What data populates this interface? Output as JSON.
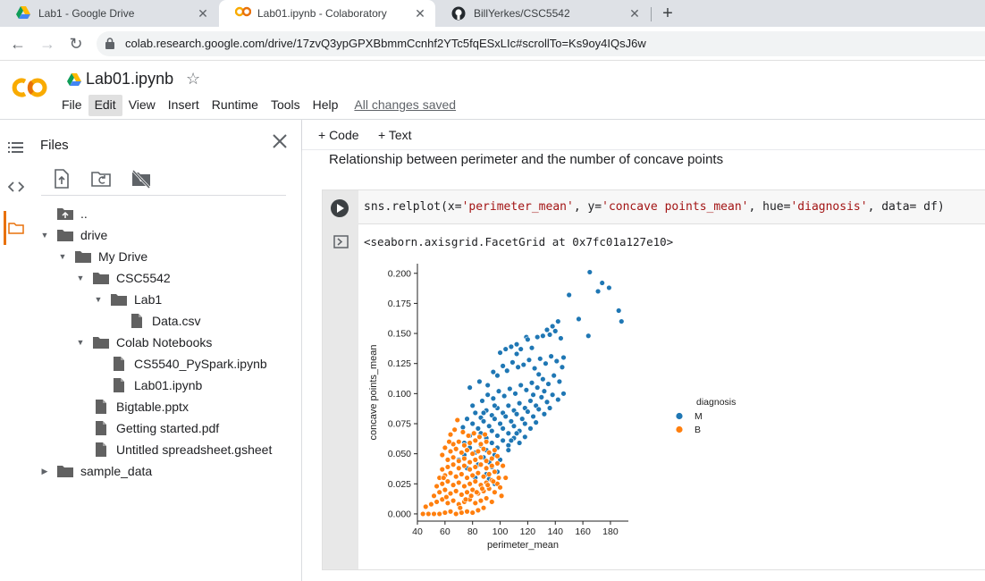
{
  "browser": {
    "tabs": [
      {
        "title": "Lab1 - Google Drive",
        "icon": "google-drive-icon",
        "active": false
      },
      {
        "title": "Lab01.ipynb - Colaboratory",
        "icon": "colab-icon",
        "active": true
      },
      {
        "title": "BillYerkes/CSC5542",
        "icon": "github-icon",
        "active": false
      }
    ],
    "url": "colab.research.google.com/drive/17zvQ3ypGPXBbmmCcnhf2YTc5fqESxLIc#scrollTo=Ks9oy4IQsJ6w"
  },
  "header": {
    "notebook_title": "Lab01.ipynb",
    "menu": [
      "File",
      "Edit",
      "View",
      "Insert",
      "Runtime",
      "Tools",
      "Help"
    ],
    "hovered_menu": "Edit",
    "save_status": "All changes saved"
  },
  "files_panel": {
    "title": "Files",
    "tree": [
      {
        "label": "..",
        "type": "parent",
        "depth": 0,
        "caret": "none"
      },
      {
        "label": "drive",
        "type": "folder",
        "depth": 0,
        "caret": "down"
      },
      {
        "label": "My Drive",
        "type": "folder",
        "depth": 1,
        "caret": "down"
      },
      {
        "label": "CSC5542",
        "type": "folder",
        "depth": 2,
        "caret": "down"
      },
      {
        "label": "Lab1",
        "type": "folder",
        "depth": 3,
        "caret": "down"
      },
      {
        "label": "Data.csv",
        "type": "file",
        "depth": 4,
        "caret": "none"
      },
      {
        "label": "Colab Notebooks",
        "type": "folder",
        "depth": 2,
        "caret": "down"
      },
      {
        "label": "CS5540_PySpark.ipynb",
        "type": "file",
        "depth": 3,
        "caret": "none"
      },
      {
        "label": "Lab01.ipynb",
        "type": "file",
        "depth": 3,
        "caret": "none"
      },
      {
        "label": "Bigtable.pptx",
        "type": "file",
        "depth": 2,
        "caret": "none"
      },
      {
        "label": "Getting started.pdf",
        "type": "file",
        "depth": 2,
        "caret": "none"
      },
      {
        "label": "Untitled spreadsheet.gsheet",
        "type": "file",
        "depth": 2,
        "caret": "none"
      },
      {
        "label": "sample_data",
        "type": "folder",
        "depth": 0,
        "caret": "right"
      }
    ]
  },
  "toolbar": {
    "code_label": "+ Code",
    "text_label": "+ Text"
  },
  "notebook": {
    "markdown": "Relationship between perimeter and the number of concave points",
    "code": {
      "p1": "sns.relplot(x=",
      "s1": "'perimeter_mean'",
      "p2": ", y=",
      "s2": "'concave points_mean'",
      "p3": ", hue=",
      "s3": "'diagnosis'",
      "p4": ", data= df)"
    },
    "output_text": "<seaborn.axisgrid.FacetGrid at 0x7fc01a127e10>"
  },
  "colors": {
    "M": "#1f77b4",
    "B": "#ff7f0e",
    "accent": "#e8710a"
  },
  "chart_data": {
    "type": "scatter",
    "xlabel": "perimeter_mean",
    "ylabel": "concave points_mean",
    "xlim": [
      40,
      193
    ],
    "ylim": [
      -0.006,
      0.208
    ],
    "xticks": [
      40,
      60,
      80,
      100,
      120,
      140,
      160,
      180
    ],
    "yticks": [
      0.0,
      0.025,
      0.05,
      0.075,
      0.1,
      0.125,
      0.15,
      0.175,
      0.2
    ],
    "ytick_labels": [
      "0.000",
      "0.025",
      "0.050",
      "0.075",
      "0.100",
      "0.125",
      "0.150",
      "0.175",
      "0.200"
    ],
    "legend": {
      "title": "diagnosis",
      "placement": "right"
    },
    "series": [
      {
        "name": "M",
        "points": [
          [
            165,
            0.201
          ],
          [
            171,
            0.185
          ],
          [
            174,
            0.192
          ],
          [
            179,
            0.188
          ],
          [
            186,
            0.169
          ],
          [
            188,
            0.16
          ],
          [
            150,
            0.182
          ],
          [
            157,
            0.162
          ],
          [
            164,
            0.148
          ],
          [
            144,
            0.146
          ],
          [
            140,
            0.152
          ],
          [
            136,
            0.149
          ],
          [
            131,
            0.148
          ],
          [
            127,
            0.147
          ],
          [
            123,
            0.138
          ],
          [
            119,
            0.147
          ],
          [
            115,
            0.137
          ],
          [
            112,
            0.141
          ],
          [
            108,
            0.139
          ],
          [
            104,
            0.137
          ],
          [
            100,
            0.134
          ],
          [
            142,
            0.16
          ],
          [
            138,
            0.156
          ],
          [
            134,
            0.153
          ],
          [
            146,
            0.13
          ],
          [
            145,
            0.122
          ],
          [
            141,
            0.127
          ],
          [
            137,
            0.131
          ],
          [
            133,
            0.125
          ],
          [
            129,
            0.129
          ],
          [
            125,
            0.121
          ],
          [
            121,
            0.128
          ],
          [
            117,
            0.124
          ],
          [
            113,
            0.122
          ],
          [
            109,
            0.126
          ],
          [
            105,
            0.119
          ],
          [
            102,
            0.123
          ],
          [
            98,
            0.115
          ],
          [
            95,
            0.118
          ],
          [
            91,
            0.107
          ],
          [
            85,
            0.11
          ],
          [
            78,
            0.105
          ],
          [
            143,
            0.11
          ],
          [
            139,
            0.115
          ],
          [
            135,
            0.108
          ],
          [
            131,
            0.112
          ],
          [
            127,
            0.105
          ],
          [
            123,
            0.109
          ],
          [
            119,
            0.103
          ],
          [
            115,
            0.107
          ],
          [
            111,
            0.1
          ],
          [
            107,
            0.104
          ],
          [
            103,
            0.098
          ],
          [
            99,
            0.102
          ],
          [
            95,
            0.096
          ],
          [
            91,
            0.099
          ],
          [
            87,
            0.094
          ],
          [
            146,
            0.1
          ],
          [
            142,
            0.095
          ],
          [
            138,
            0.099
          ],
          [
            134,
            0.093
          ],
          [
            130,
            0.097
          ],
          [
            126,
            0.09
          ],
          [
            122,
            0.094
          ],
          [
            118,
            0.088
          ],
          [
            114,
            0.092
          ],
          [
            110,
            0.086
          ],
          [
            106,
            0.09
          ],
          [
            102,
            0.084
          ],
          [
            98,
            0.088
          ],
          [
            94,
            0.082
          ],
          [
            90,
            0.086
          ],
          [
            86,
            0.08
          ],
          [
            82,
            0.084
          ],
          [
            136,
            0.088
          ],
          [
            132,
            0.083
          ],
          [
            128,
            0.087
          ],
          [
            124,
            0.081
          ],
          [
            120,
            0.085
          ],
          [
            116,
            0.079
          ],
          [
            112,
            0.083
          ],
          [
            108,
            0.077
          ],
          [
            104,
            0.081
          ],
          [
            100,
            0.075
          ],
          [
            96,
            0.079
          ],
          [
            92,
            0.073
          ],
          [
            88,
            0.077
          ],
          [
            84,
            0.071
          ],
          [
            80,
            0.075
          ],
          [
            126,
            0.076
          ],
          [
            122,
            0.071
          ],
          [
            118,
            0.075
          ],
          [
            114,
            0.069
          ],
          [
            110,
            0.073
          ],
          [
            106,
            0.067
          ],
          [
            102,
            0.071
          ],
          [
            98,
            0.065
          ],
          [
            94,
            0.069
          ],
          [
            90,
            0.063
          ],
          [
            86,
            0.067
          ],
          [
            82,
            0.061
          ],
          [
            78,
            0.065
          ],
          [
            74,
            0.059
          ],
          [
            118,
            0.064
          ],
          [
            114,
            0.059
          ],
          [
            110,
            0.063
          ],
          [
            106,
            0.057
          ],
          [
            102,
            0.061
          ],
          [
            98,
            0.055
          ],
          [
            94,
            0.059
          ],
          [
            90,
            0.053
          ],
          [
            86,
            0.057
          ],
          [
            82,
            0.051
          ],
          [
            78,
            0.055
          ],
          [
            74,
            0.049
          ],
          [
            100,
            0.045
          ],
          [
            96,
            0.049
          ],
          [
            92,
            0.043
          ],
          [
            88,
            0.047
          ],
          [
            84,
            0.041
          ],
          [
            98,
            0.035
          ],
          [
            94,
            0.039
          ],
          [
            90,
            0.033
          ],
          [
            96,
            0.025
          ],
          [
            92,
            0.029
          ],
          [
            106,
            0.053
          ],
          [
            108,
            0.061
          ],
          [
            112,
            0.067
          ],
          [
            132,
            0.102
          ],
          [
            128,
            0.116
          ],
          [
            124,
            0.099
          ],
          [
            96,
            0.09
          ],
          [
            88,
            0.084
          ],
          [
            80,
            0.09
          ],
          [
            76,
            0.079
          ],
          [
            73,
            0.072
          ],
          [
            70,
            0.045
          ],
          [
            76,
            0.038
          ],
          [
            82,
            0.03
          ],
          [
            120,
            0.145
          ],
          [
            112,
            0.133
          ]
        ]
      },
      {
        "name": "B",
        "points": [
          [
            44,
            0.0
          ],
          [
            48,
            0.0
          ],
          [
            52,
            0.0
          ],
          [
            56,
            0.0
          ],
          [
            60,
            0.001
          ],
          [
            64,
            0.002
          ],
          [
            68,
            0.0
          ],
          [
            72,
            0.001
          ],
          [
            76,
            0.002
          ],
          [
            80,
            0.001
          ],
          [
            84,
            0.003
          ],
          [
            88,
            0.005
          ],
          [
            46,
            0.006
          ],
          [
            50,
            0.008
          ],
          [
            54,
            0.01
          ],
          [
            58,
            0.012
          ],
          [
            62,
            0.009
          ],
          [
            66,
            0.011
          ],
          [
            70,
            0.008
          ],
          [
            74,
            0.01
          ],
          [
            78,
            0.012
          ],
          [
            82,
            0.009
          ],
          [
            86,
            0.011
          ],
          [
            90,
            0.013
          ],
          [
            94,
            0.01
          ],
          [
            52,
            0.015
          ],
          [
            56,
            0.018
          ],
          [
            60,
            0.02
          ],
          [
            64,
            0.017
          ],
          [
            68,
            0.019
          ],
          [
            72,
            0.016
          ],
          [
            76,
            0.018
          ],
          [
            80,
            0.02
          ],
          [
            84,
            0.017
          ],
          [
            88,
            0.019
          ],
          [
            92,
            0.021
          ],
          [
            96,
            0.018
          ],
          [
            54,
            0.023
          ],
          [
            58,
            0.025
          ],
          [
            62,
            0.027
          ],
          [
            66,
            0.024
          ],
          [
            70,
            0.026
          ],
          [
            74,
            0.023
          ],
          [
            78,
            0.025
          ],
          [
            82,
            0.027
          ],
          [
            86,
            0.024
          ],
          [
            90,
            0.026
          ],
          [
            94,
            0.028
          ],
          [
            98,
            0.025
          ],
          [
            56,
            0.03
          ],
          [
            60,
            0.032
          ],
          [
            64,
            0.034
          ],
          [
            68,
            0.031
          ],
          [
            72,
            0.033
          ],
          [
            76,
            0.03
          ],
          [
            80,
            0.032
          ],
          [
            84,
            0.034
          ],
          [
            88,
            0.031
          ],
          [
            92,
            0.033
          ],
          [
            96,
            0.035
          ],
          [
            58,
            0.037
          ],
          [
            62,
            0.039
          ],
          [
            66,
            0.041
          ],
          [
            70,
            0.038
          ],
          [
            74,
            0.04
          ],
          [
            78,
            0.037
          ],
          [
            82,
            0.039
          ],
          [
            86,
            0.041
          ],
          [
            90,
            0.038
          ],
          [
            94,
            0.04
          ],
          [
            98,
            0.042
          ],
          [
            62,
            0.045
          ],
          [
            66,
            0.047
          ],
          [
            70,
            0.044
          ],
          [
            74,
            0.046
          ],
          [
            78,
            0.043
          ],
          [
            82,
            0.045
          ],
          [
            86,
            0.047
          ],
          [
            90,
            0.044
          ],
          [
            94,
            0.046
          ],
          [
            98,
            0.048
          ],
          [
            64,
            0.052
          ],
          [
            68,
            0.054
          ],
          [
            72,
            0.051
          ],
          [
            76,
            0.053
          ],
          [
            80,
            0.05
          ],
          [
            84,
            0.052
          ],
          [
            88,
            0.054
          ],
          [
            92,
            0.051
          ],
          [
            96,
            0.053
          ],
          [
            66,
            0.058
          ],
          [
            70,
            0.06
          ],
          [
            74,
            0.057
          ],
          [
            78,
            0.059
          ],
          [
            82,
            0.061
          ],
          [
            86,
            0.058
          ],
          [
            90,
            0.06
          ],
          [
            69,
            0.078
          ],
          [
            64,
            0.066
          ],
          [
            67,
            0.07
          ],
          [
            73,
            0.068
          ],
          [
            77,
            0.065
          ],
          [
            81,
            0.067
          ],
          [
            85,
            0.064
          ],
          [
            89,
            0.066
          ],
          [
            58,
            0.049
          ],
          [
            60,
            0.055
          ],
          [
            63,
            0.06
          ],
          [
            102,
            0.04
          ],
          [
            104,
            0.03
          ],
          [
            100,
            0.022
          ],
          [
            101,
            0.015
          ],
          [
            59,
            0.03
          ],
          [
            61,
            0.014
          ],
          [
            71,
            0.005
          ],
          [
            75,
            0.012
          ],
          [
            79,
            0.015
          ],
          [
            83,
            0.018
          ],
          [
            87,
            0.021
          ],
          [
            91,
            0.024
          ],
          [
            95,
            0.027
          ],
          [
            99,
            0.03
          ]
        ]
      }
    ]
  }
}
